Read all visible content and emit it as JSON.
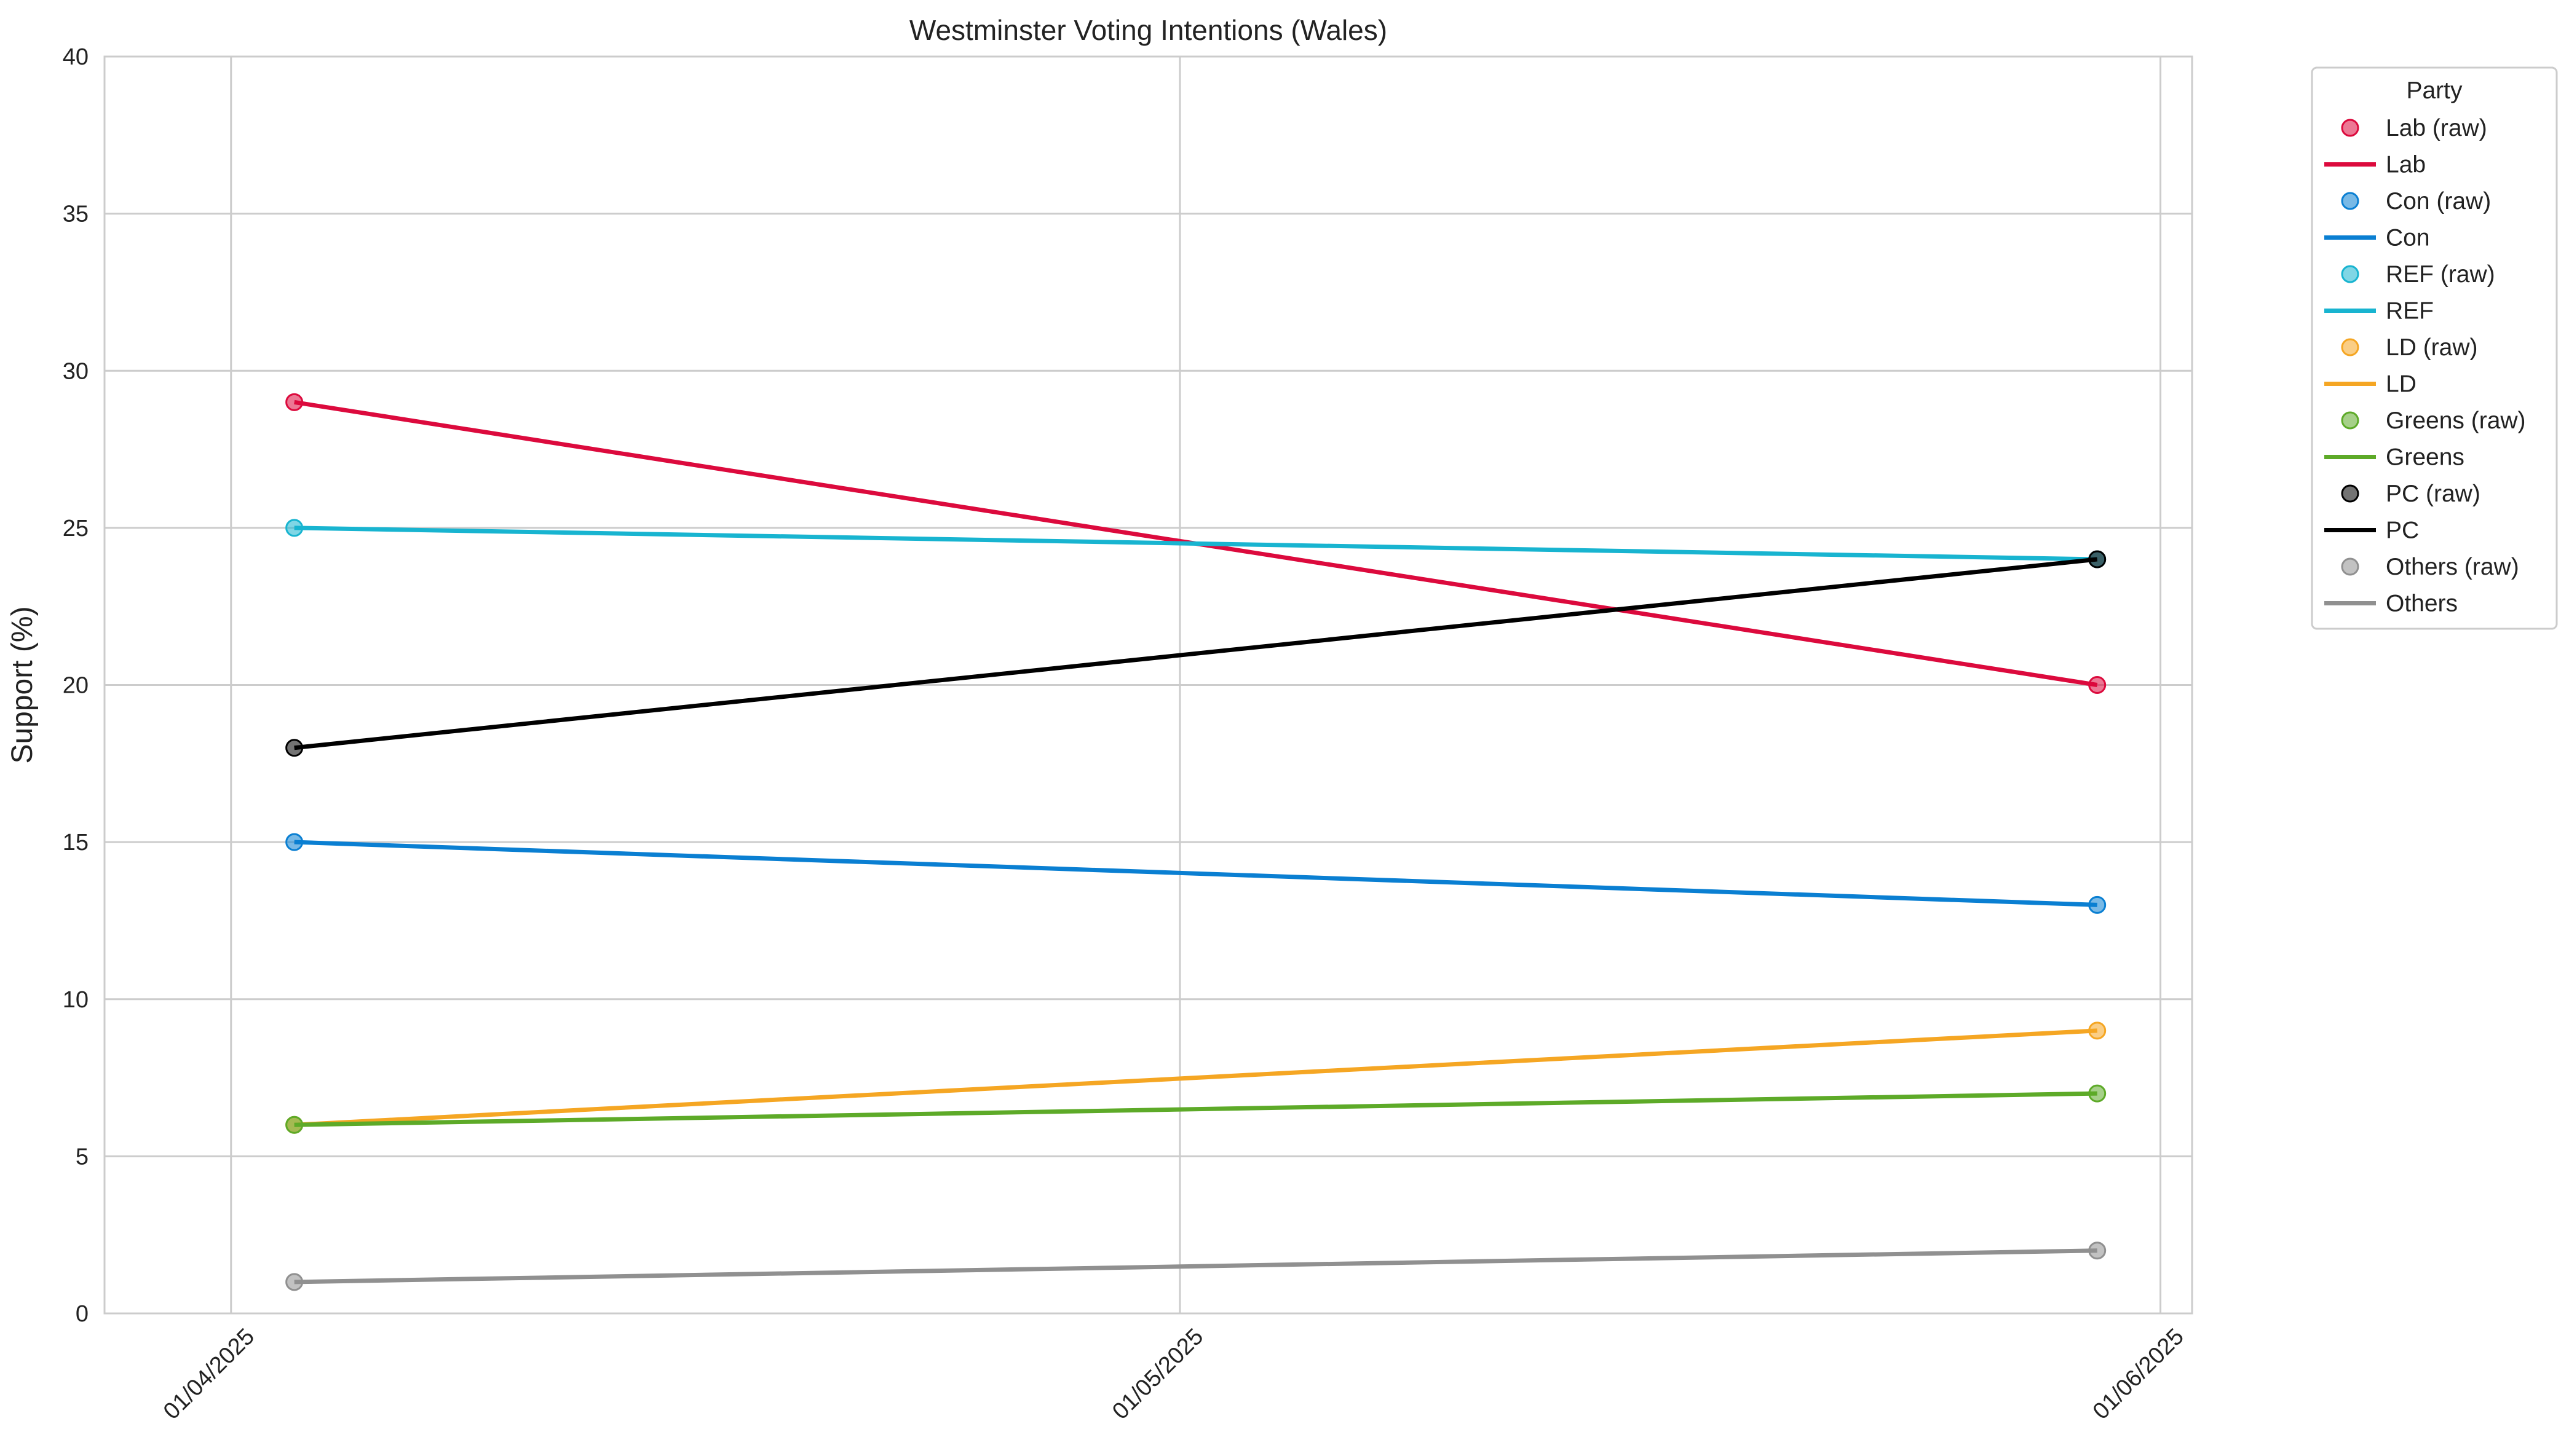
{
  "chart_data": {
    "type": "line",
    "title": "Westminster Voting Intentions (Wales)",
    "xlabel": "",
    "ylabel": "Support (%)",
    "ylim": [
      0,
      40
    ],
    "yticks": [
      0,
      5,
      10,
      15,
      20,
      25,
      30,
      35,
      40
    ],
    "xlim": [
      "2025-03-28",
      "2025-06-02"
    ],
    "xticks": [
      {
        "date": "2025-04-01",
        "label": "01/04/2025"
      },
      {
        "date": "2025-05-01",
        "label": "01/05/2025"
      },
      {
        "date": "2025-06-01",
        "label": "01/06/2025"
      }
    ],
    "grid": true,
    "legend": {
      "title": "Party",
      "placement": "outside-right"
    },
    "x": [
      "2025-04-03",
      "2025-05-30"
    ],
    "series": [
      {
        "name": "Lab",
        "raw_label": "Lab (raw)",
        "color": "#DC0A3D",
        "values": [
          29,
          20
        ]
      },
      {
        "name": "Con",
        "raw_label": "Con (raw)",
        "color": "#0A7FD2",
        "values": [
          15,
          13
        ]
      },
      {
        "name": "REF",
        "raw_label": "REF (raw)",
        "color": "#18B4D0",
        "values": [
          25,
          24
        ]
      },
      {
        "name": "LD",
        "raw_label": "LD (raw)",
        "color": "#F5A623",
        "values": [
          6,
          9
        ]
      },
      {
        "name": "Greens",
        "raw_label": "Greens (raw)",
        "color": "#5DAA28",
        "values": [
          6,
          7
        ]
      },
      {
        "name": "PC",
        "raw_label": "PC (raw)",
        "color": "#000000",
        "values": [
          18,
          24
        ]
      },
      {
        "name": "Others",
        "raw_label": "Others (raw)",
        "color": "#909090",
        "values": [
          1,
          2
        ]
      }
    ]
  }
}
